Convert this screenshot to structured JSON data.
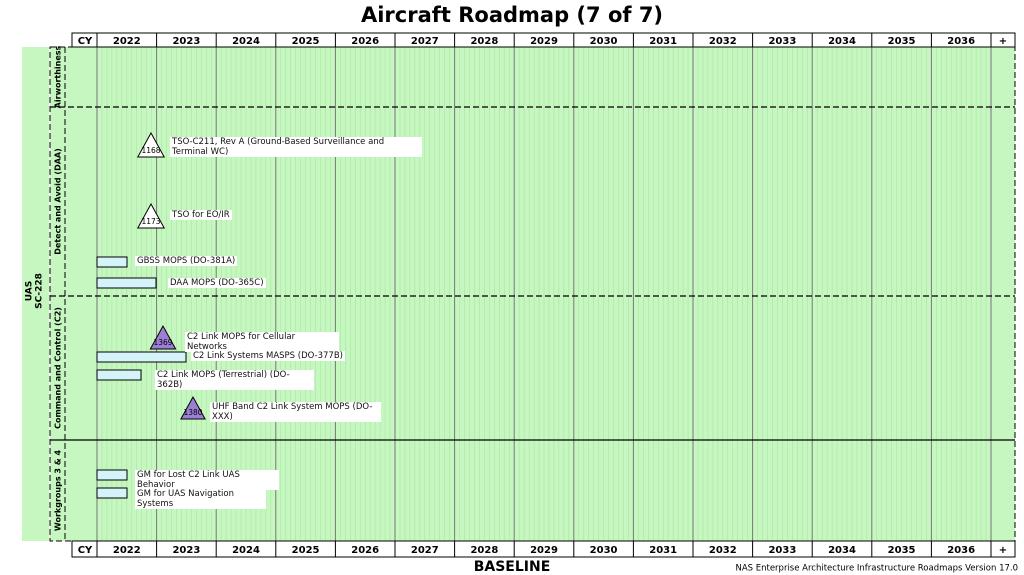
{
  "title": "Aircraft Roadmap (7 of 7)",
  "header": {
    "label": "CY",
    "years": [
      "2022",
      "2023",
      "2024",
      "2025",
      "2026",
      "2027",
      "2028",
      "2029",
      "2030",
      "2031",
      "2032",
      "2033",
      "2034",
      "2035",
      "2036",
      "+"
    ]
  },
  "group": {
    "lines": [
      "UAS",
      "SC-228"
    ]
  },
  "lanes": [
    {
      "label": "Airworthiness",
      "items": []
    },
    {
      "label": "Detect and Avoid (DAA)",
      "items": [
        {
          "kind": "milestone",
          "id": "1168",
          "color": "#ffffff",
          "label": "TSO-C211, Rev A (Ground-Based Surveillance and Terminal WC)"
        },
        {
          "kind": "milestone",
          "id": "1173",
          "color": "#ffffff",
          "label": "TSO for EO/IR"
        },
        {
          "kind": "bar",
          "label": "GBSS MOPS (DO-381A)"
        },
        {
          "kind": "bar",
          "label": "DAA MOPS (DO-365C)"
        }
      ]
    },
    {
      "label": "Command and Control (C2)",
      "items": [
        {
          "kind": "milestone",
          "id": "1369",
          "color": "#9b7fd4",
          "label": "C2 Link MOPS for Cellular Networks"
        },
        {
          "kind": "bar",
          "label": "C2 Link Systems MASPS (DO-377B)"
        },
        {
          "kind": "bar",
          "label": "C2 Link MOPS (Terrestrial) (DO-362B)"
        },
        {
          "kind": "milestone",
          "id": "1380",
          "color": "#9b7fd4",
          "label": "UHF Band C2 Link System MOPS (DO-XXX)"
        }
      ]
    },
    {
      "label": "Workgroups 3 & 4",
      "items": [
        {
          "kind": "bar",
          "label": "GM for Lost C2 Link UAS Behavior"
        },
        {
          "kind": "bar",
          "label": "GM for UAS Navigation Systems"
        }
      ]
    }
  ],
  "footer": {
    "baseline": "BASELINE",
    "version": "NAS Enterprise Architecture Infrastructure Roadmaps Version 17.0"
  }
}
